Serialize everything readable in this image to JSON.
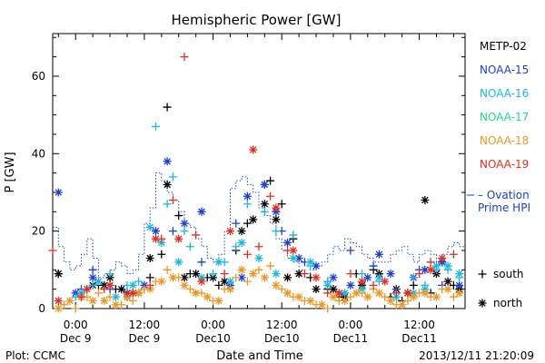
{
  "chart_data": {
    "type": "scatter",
    "title": "Hemispheric Power [GW]",
    "xlabel": "Date and Time",
    "ylabel": "P [GW]",
    "ylim": [
      0,
      71
    ],
    "xlim": [
      -4,
      68
    ],
    "x_unit": "hours from Dec 9 00:00 (2013)",
    "yticks": [
      0,
      20,
      40,
      60
    ],
    "xticks": [
      {
        "x": 0,
        "time": "0:00",
        "date": "Dec 9"
      },
      {
        "x": 12,
        "time": "12:00",
        "date": "Dec 9"
      },
      {
        "x": 24,
        "time": "0:00",
        "date": "Dec10"
      },
      {
        "x": 36,
        "time": "12:00",
        "date": "Dec10"
      },
      {
        "x": 48,
        "time": "0:00",
        "date": "Dec11"
      },
      {
        "x": 60,
        "time": "12:00",
        "date": "Dec11"
      }
    ],
    "footer_left": "Plot: CCMC",
    "footer_right": "2013/12/11 21:20:09",
    "symbol_legend": [
      {
        "symbol": "+",
        "label": "south"
      },
      {
        "symbol": "*",
        "label": "north"
      }
    ],
    "ovation": {
      "name_line1": "– Ovation",
      "name_line2": "Prime HPI",
      "color": "#1a3fd6",
      "x": [
        -4,
        -3,
        -2,
        -1,
        0,
        1,
        2,
        3,
        4,
        5,
        6,
        7,
        8,
        9,
        10,
        11,
        12,
        13,
        14,
        15,
        16,
        17,
        18,
        19,
        20,
        21,
        22,
        23,
        24,
        25,
        26,
        27,
        28,
        29,
        30,
        31,
        32,
        33,
        34,
        35,
        36,
        37,
        38,
        39,
        40,
        41,
        42,
        43,
        44,
        45,
        46,
        47,
        48,
        49,
        50,
        51,
        52,
        53,
        54,
        55,
        56,
        57,
        58,
        59,
        60,
        61,
        62,
        63,
        64,
        65,
        66,
        67,
        68
      ],
      "y": [
        21,
        16,
        12,
        10,
        11,
        14,
        18,
        13,
        8,
        9,
        10,
        12,
        11,
        9,
        10,
        14,
        22,
        26,
        35,
        33,
        30,
        28,
        25,
        22,
        21,
        18,
        16,
        13,
        12,
        14,
        20,
        31,
        33,
        34,
        32,
        30,
        26,
        24,
        22,
        18,
        15,
        13,
        12,
        10,
        9,
        10,
        11,
        12,
        14,
        16,
        15,
        18,
        17,
        16,
        14,
        13,
        12,
        12,
        12,
        14,
        15,
        16,
        14,
        12,
        14,
        15,
        14,
        12,
        14,
        16,
        17,
        16,
        16
      ]
    },
    "series": [
      {
        "name": "METP-02",
        "color": "#000000",
        "south": [
          [
            -3,
            9
          ],
          [
            2,
            5
          ],
          [
            4,
            6
          ],
          [
            7,
            5
          ],
          [
            10,
            4
          ],
          [
            13,
            8
          ],
          [
            15,
            14
          ],
          [
            16,
            52
          ],
          [
            18,
            24
          ],
          [
            20,
            9
          ],
          [
            23,
            8
          ],
          [
            25,
            6
          ],
          [
            28,
            15
          ],
          [
            30,
            22
          ],
          [
            34,
            33
          ],
          [
            36,
            27
          ],
          [
            38,
            18
          ],
          [
            41,
            8
          ],
          [
            44,
            5
          ],
          [
            46,
            3
          ],
          [
            49,
            9
          ],
          [
            52,
            10
          ],
          [
            55,
            3
          ],
          [
            57,
            2
          ],
          [
            59,
            6
          ],
          [
            62,
            4
          ],
          [
            64,
            12
          ],
          [
            66,
            6
          ]
        ],
        "north": [
          [
            -3,
            9
          ],
          [
            1,
            3
          ],
          [
            3,
            6
          ],
          [
            5,
            6
          ],
          [
            6,
            8
          ],
          [
            8,
            5
          ],
          [
            9,
            3
          ],
          [
            11,
            4
          ],
          [
            13,
            13
          ],
          [
            16,
            32
          ],
          [
            19,
            8
          ],
          [
            21,
            9
          ],
          [
            24,
            8
          ],
          [
            26,
            7
          ],
          [
            29,
            20
          ],
          [
            31,
            23
          ],
          [
            33,
            27
          ],
          [
            35,
            23
          ],
          [
            37,
            8
          ],
          [
            39,
            9
          ],
          [
            42,
            5
          ],
          [
            45,
            5
          ],
          [
            47,
            3
          ],
          [
            50,
            6
          ],
          [
            53,
            9
          ],
          [
            56,
            5
          ],
          [
            58,
            4
          ],
          [
            61,
            28
          ],
          [
            63,
            9
          ],
          [
            65,
            7
          ],
          [
            67,
            5
          ]
        ]
      },
      {
        "name": "NOAA-15",
        "color": "#1a3fd6",
        "south": [
          [
            1,
            5
          ],
          [
            3,
            10
          ],
          [
            6,
            5
          ],
          [
            12,
            5
          ],
          [
            17,
            20
          ],
          [
            22,
            12
          ],
          [
            28,
            22
          ],
          [
            33,
            32
          ],
          [
            36,
            20
          ],
          [
            40,
            12
          ],
          [
            44,
            7
          ],
          [
            48,
            15
          ],
          [
            52,
            11
          ],
          [
            56,
            5
          ],
          [
            60,
            10
          ],
          [
            64,
            6
          ]
        ],
        "north": [
          [
            -3,
            30
          ],
          [
            0,
            4
          ],
          [
            3,
            8
          ],
          [
            6,
            6
          ],
          [
            9,
            4
          ],
          [
            12,
            6
          ],
          [
            14,
            20
          ],
          [
            16,
            38
          ],
          [
            19,
            22
          ],
          [
            22,
            25
          ],
          [
            27,
            6
          ],
          [
            29,
            8
          ],
          [
            30,
            29
          ],
          [
            33,
            32
          ],
          [
            35,
            25
          ],
          [
            37,
            17
          ],
          [
            39,
            13
          ],
          [
            42,
            11
          ],
          [
            45,
            8
          ],
          [
            48,
            6
          ],
          [
            51,
            8
          ],
          [
            53,
            14
          ],
          [
            55,
            9
          ],
          [
            59,
            8
          ],
          [
            61,
            10
          ],
          [
            64,
            12
          ],
          [
            67,
            6
          ]
        ]
      },
      {
        "name": "NOAA-16",
        "color": "#17b8e6",
        "south": [
          [
            0,
            3
          ],
          [
            3,
            6
          ],
          [
            6,
            9
          ],
          [
            9,
            6
          ],
          [
            11,
            7
          ],
          [
            14,
            47
          ],
          [
            16,
            27
          ],
          [
            17,
            34
          ],
          [
            19,
            20
          ],
          [
            20,
            16
          ],
          [
            24,
            9
          ],
          [
            26,
            12
          ],
          [
            28,
            16
          ],
          [
            30,
            27
          ],
          [
            33,
            25
          ],
          [
            35,
            20
          ],
          [
            38,
            19
          ],
          [
            41,
            11
          ],
          [
            44,
            7
          ],
          [
            47,
            4
          ],
          [
            50,
            9
          ],
          [
            53,
            7
          ],
          [
            56,
            4
          ],
          [
            59,
            8
          ],
          [
            61,
            6
          ],
          [
            63,
            10
          ],
          [
            65,
            10
          ],
          [
            67,
            8
          ]
        ],
        "north": [
          [
            1,
            4
          ],
          [
            4,
            7
          ],
          [
            7,
            3
          ],
          [
            10,
            6
          ],
          [
            13,
            21
          ],
          [
            15,
            17
          ],
          [
            18,
            12
          ],
          [
            22,
            8
          ],
          [
            25,
            12
          ],
          [
            27,
            7
          ],
          [
            29,
            17
          ],
          [
            32,
            13
          ],
          [
            35,
            9
          ],
          [
            38,
            13
          ],
          [
            41,
            12
          ],
          [
            44,
            6
          ],
          [
            47,
            4
          ],
          [
            50,
            5
          ],
          [
            53,
            8
          ],
          [
            56,
            3
          ],
          [
            59,
            4
          ],
          [
            61,
            5
          ],
          [
            63,
            11
          ],
          [
            65,
            11
          ],
          [
            67,
            9
          ]
        ]
      },
      {
        "name": "NOAA-17",
        "color": "#1fd88a",
        "south": [],
        "north": []
      },
      {
        "name": "NOAA-18",
        "color": "#f0961e",
        "south": [
          [
            -2,
            1
          ],
          [
            0,
            0
          ],
          [
            2,
            3
          ],
          [
            4,
            4
          ],
          [
            6,
            3
          ],
          [
            8,
            1
          ],
          [
            10,
            2
          ],
          [
            12,
            5
          ],
          [
            14,
            7
          ],
          [
            16,
            10
          ],
          [
            18,
            8
          ],
          [
            20,
            5
          ],
          [
            22,
            4
          ],
          [
            24,
            2
          ],
          [
            26,
            5
          ],
          [
            28,
            8
          ],
          [
            30,
            7
          ],
          [
            32,
            10
          ],
          [
            34,
            11
          ],
          [
            36,
            5
          ],
          [
            38,
            3
          ],
          [
            40,
            2
          ],
          [
            42,
            1
          ],
          [
            44,
            0
          ],
          [
            46,
            2
          ],
          [
            48,
            3
          ],
          [
            50,
            4
          ],
          [
            52,
            5
          ],
          [
            54,
            3
          ],
          [
            56,
            1
          ],
          [
            58,
            2
          ],
          [
            60,
            4
          ],
          [
            62,
            3
          ],
          [
            64,
            5
          ],
          [
            66,
            3
          ]
        ],
        "north": [
          [
            -3,
            0
          ],
          [
            -1,
            2
          ],
          [
            1,
            3
          ],
          [
            3,
            2
          ],
          [
            5,
            2
          ],
          [
            7,
            1
          ],
          [
            9,
            3
          ],
          [
            11,
            4
          ],
          [
            13,
            5
          ],
          [
            15,
            7
          ],
          [
            17,
            8
          ],
          [
            19,
            6
          ],
          [
            21,
            4
          ],
          [
            23,
            3
          ],
          [
            25,
            2
          ],
          [
            27,
            5
          ],
          [
            29,
            10
          ],
          [
            31,
            9
          ],
          [
            33,
            8
          ],
          [
            35,
            6
          ],
          [
            37,
            4
          ],
          [
            39,
            3
          ],
          [
            41,
            2
          ],
          [
            43,
            1
          ],
          [
            45,
            3
          ],
          [
            47,
            2
          ],
          [
            49,
            4
          ],
          [
            51,
            3
          ],
          [
            53,
            4
          ],
          [
            55,
            2
          ],
          [
            57,
            1
          ],
          [
            59,
            3
          ],
          [
            61,
            4
          ],
          [
            63,
            3
          ],
          [
            65,
            5
          ],
          [
            67,
            4
          ]
        ]
      },
      {
        "name": "NOAA-19",
        "color": "#e62b1e",
        "south": [
          [
            -4,
            15
          ],
          [
            1,
            3
          ],
          [
            5,
            5
          ],
          [
            9,
            4
          ],
          [
            13,
            6
          ],
          [
            15,
            18
          ],
          [
            17,
            28
          ],
          [
            19,
            65
          ],
          [
            21,
            19
          ],
          [
            26,
            9
          ],
          [
            30,
            14
          ],
          [
            32,
            16
          ],
          [
            34,
            29
          ],
          [
            37,
            15
          ],
          [
            40,
            9
          ],
          [
            44,
            4
          ],
          [
            48,
            9
          ],
          [
            52,
            6
          ],
          [
            56,
            4
          ],
          [
            60,
            9
          ],
          [
            62,
            12
          ],
          [
            66,
            14
          ]
        ],
        "north": [
          [
            -3,
            2
          ],
          [
            2,
            5
          ],
          [
            6,
            6
          ],
          [
            10,
            4
          ],
          [
            14,
            18
          ],
          [
            18,
            18
          ],
          [
            22,
            7
          ],
          [
            27,
            20
          ],
          [
            31,
            41
          ],
          [
            35,
            26
          ],
          [
            38,
            15
          ],
          [
            42,
            8
          ],
          [
            46,
            4
          ],
          [
            50,
            7
          ],
          [
            54,
            7
          ],
          [
            58,
            4
          ],
          [
            62,
            10
          ],
          [
            64,
            13
          ]
        ]
      }
    ]
  }
}
